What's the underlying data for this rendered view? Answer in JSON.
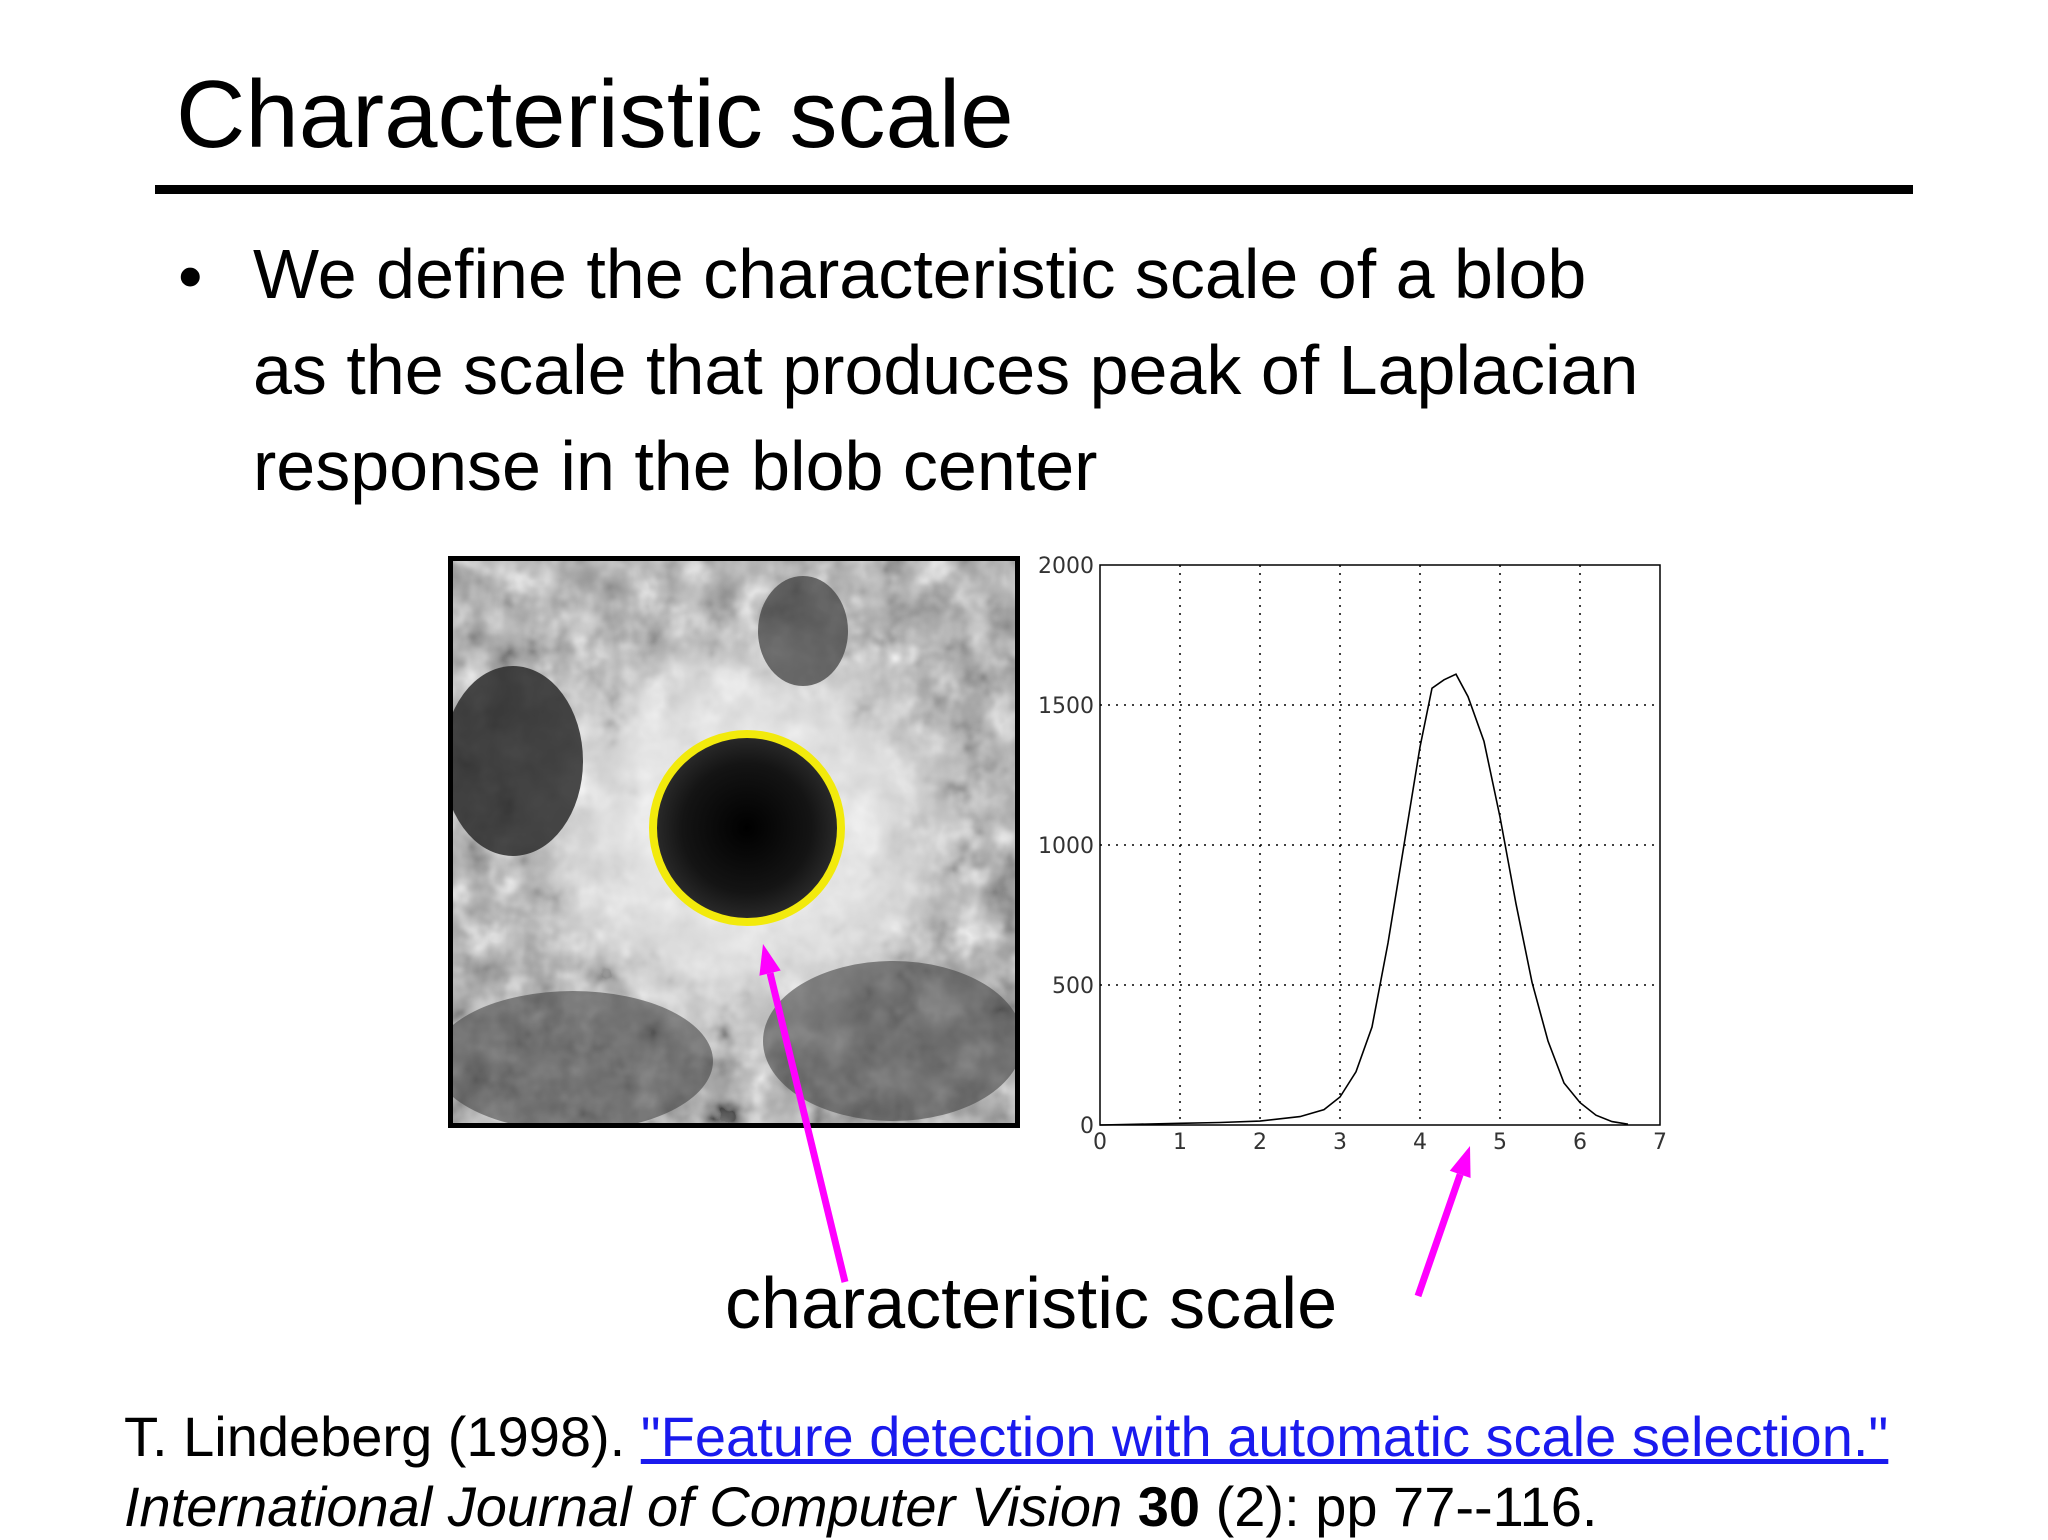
{
  "slide": {
    "title": "Characteristic scale",
    "bullet_symbol": "•",
    "bullet_lines": [
      "We define the characteristic scale of a blob",
      "as the scale that produces peak of Laplacian",
      "response in the blob center"
    ],
    "annotation_label": "characteristic scale",
    "reference": {
      "authors_year": "T. Lindeberg (1998). ",
      "paper_title_link": "\"Feature detection with automatic scale selection.\"",
      "journal": "International Journal of Computer Vision",
      "journal_spacer": " ",
      "volume": "30",
      "pages": " (2): pp 77--116."
    }
  },
  "colors": {
    "circle": "#f2ea0c",
    "arrow": "#ff00ff",
    "link": "#1a1aee"
  },
  "chart_data": {
    "type": "line",
    "title": "",
    "xlabel": "",
    "ylabel": "",
    "xlim": [
      0,
      7
    ],
    "ylim": [
      0,
      2000
    ],
    "xticks": [
      0,
      1,
      2,
      3,
      4,
      5,
      6,
      7
    ],
    "yticks": [
      0,
      500,
      1000,
      1500,
      2000
    ],
    "grid": true,
    "grid_style": "dotted",
    "series": [
      {
        "x": [
          0,
          0.5,
          1,
          1.5,
          2,
          2.5,
          2.8,
          3.0,
          3.2,
          3.4,
          3.6,
          3.8,
          4.0,
          4.15,
          4.3,
          4.45,
          4.6,
          4.8,
          5.0,
          5.2,
          5.4,
          5.6,
          5.8,
          6.0,
          6.2,
          6.4,
          6.6
        ],
        "y": [
          0,
          3,
          6,
          9,
          14,
          30,
          55,
          100,
          190,
          350,
          650,
          1000,
          1350,
          1560,
          1590,
          1610,
          1530,
          1370,
          1100,
          790,
          510,
          300,
          150,
          80,
          35,
          12,
          3
        ]
      }
    ]
  }
}
